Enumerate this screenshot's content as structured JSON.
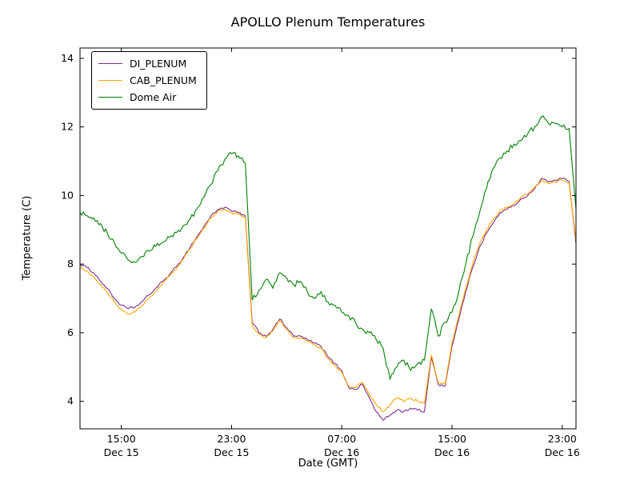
{
  "figure": {
    "title": "APOLLO Plenum Temperatures",
    "background": "#ffffff"
  },
  "chart_data": {
    "type": "line",
    "title": "APOLLO Plenum Temperatures",
    "xlabel": "Date (GMT)",
    "ylabel": "Temperature (C)",
    "x_unit": "hours since Dec 15 12:00 GMT",
    "x_start": 0,
    "x_step": 0.5,
    "xlim": [
      0,
      36
    ],
    "ylim": [
      3.2,
      14.3
    ],
    "grid": false,
    "legend_position": "upper-left",
    "axis_color": "#000000",
    "yticks": [
      4,
      6,
      8,
      10,
      12,
      14
    ],
    "xticks": [
      {
        "t": 3,
        "line1": "15:00",
        "line2": "Dec 15"
      },
      {
        "t": 11,
        "line1": "23:00",
        "line2": "Dec 15"
      },
      {
        "t": 19,
        "line1": "07:00",
        "line2": "Dec 16"
      },
      {
        "t": 27,
        "line1": "15:00",
        "line2": "Dec 16"
      },
      {
        "t": 35,
        "line1": "23:00",
        "line2": "Dec 16"
      }
    ],
    "series": [
      {
        "name": "DI_PLENUM",
        "color": "#7d2e8d",
        "jitter": 0.035,
        "values": [
          8.0,
          7.9,
          7.75,
          7.5,
          7.28,
          7.0,
          6.8,
          6.7,
          6.75,
          6.9,
          7.1,
          7.3,
          7.5,
          7.7,
          7.92,
          8.2,
          8.5,
          8.8,
          9.1,
          9.4,
          9.6,
          9.65,
          9.55,
          9.5,
          9.4,
          6.3,
          6.0,
          5.9,
          6.1,
          6.4,
          6.15,
          5.9,
          5.9,
          5.8,
          5.7,
          5.6,
          5.3,
          5.1,
          4.9,
          4.4,
          4.35,
          4.5,
          4.1,
          3.7,
          3.45,
          3.6,
          3.75,
          3.7,
          3.8,
          3.75,
          3.7,
          5.3,
          4.5,
          4.45,
          5.6,
          6.4,
          7.2,
          7.9,
          8.5,
          8.9,
          9.2,
          9.5,
          9.6,
          9.7,
          9.9,
          10.0,
          10.2,
          10.5,
          10.4,
          10.45,
          10.5,
          10.4,
          8.6
        ]
      },
      {
        "name": "CAB_PLENUM",
        "color": "#ffa500",
        "jitter": 0.035,
        "values": [
          7.92,
          7.8,
          7.62,
          7.4,
          7.15,
          6.9,
          6.68,
          6.55,
          6.6,
          6.8,
          7.0,
          7.22,
          7.45,
          7.65,
          7.85,
          8.15,
          8.45,
          8.75,
          9.05,
          9.35,
          9.55,
          9.6,
          9.5,
          9.45,
          9.35,
          6.2,
          5.95,
          5.85,
          6.05,
          6.35,
          6.1,
          5.85,
          5.85,
          5.75,
          5.65,
          5.55,
          5.25,
          5.05,
          4.85,
          4.45,
          4.4,
          4.55,
          4.2,
          3.9,
          3.7,
          3.9,
          4.1,
          4.0,
          4.1,
          4.0,
          3.95,
          5.35,
          4.55,
          4.5,
          5.7,
          6.5,
          7.3,
          8.0,
          8.6,
          9.0,
          9.3,
          9.55,
          9.65,
          9.75,
          9.95,
          10.05,
          10.25,
          10.45,
          10.35,
          10.4,
          10.45,
          10.35,
          8.7
        ]
      },
      {
        "name": "Dome Air",
        "color": "#008000",
        "jitter": 0.08,
        "values": [
          9.5,
          9.42,
          9.35,
          9.18,
          8.88,
          8.62,
          8.32,
          8.12,
          8.05,
          8.22,
          8.38,
          8.52,
          8.62,
          8.78,
          8.92,
          9.12,
          9.32,
          9.62,
          9.95,
          10.32,
          10.72,
          11.05,
          11.22,
          11.15,
          10.95,
          6.95,
          7.25,
          7.55,
          7.3,
          7.75,
          7.6,
          7.4,
          7.5,
          7.2,
          7.0,
          7.2,
          6.9,
          6.8,
          6.6,
          6.5,
          6.3,
          6.1,
          6.0,
          5.8,
          5.55,
          4.65,
          5.0,
          5.2,
          4.9,
          5.1,
          5.2,
          6.7,
          5.9,
          6.3,
          6.6,
          7.2,
          8.0,
          8.8,
          9.5,
          10.2,
          10.8,
          11.1,
          11.3,
          11.5,
          11.6,
          11.8,
          12.0,
          12.3,
          12.1,
          12.1,
          12.0,
          11.95,
          9.6
        ]
      }
    ]
  }
}
